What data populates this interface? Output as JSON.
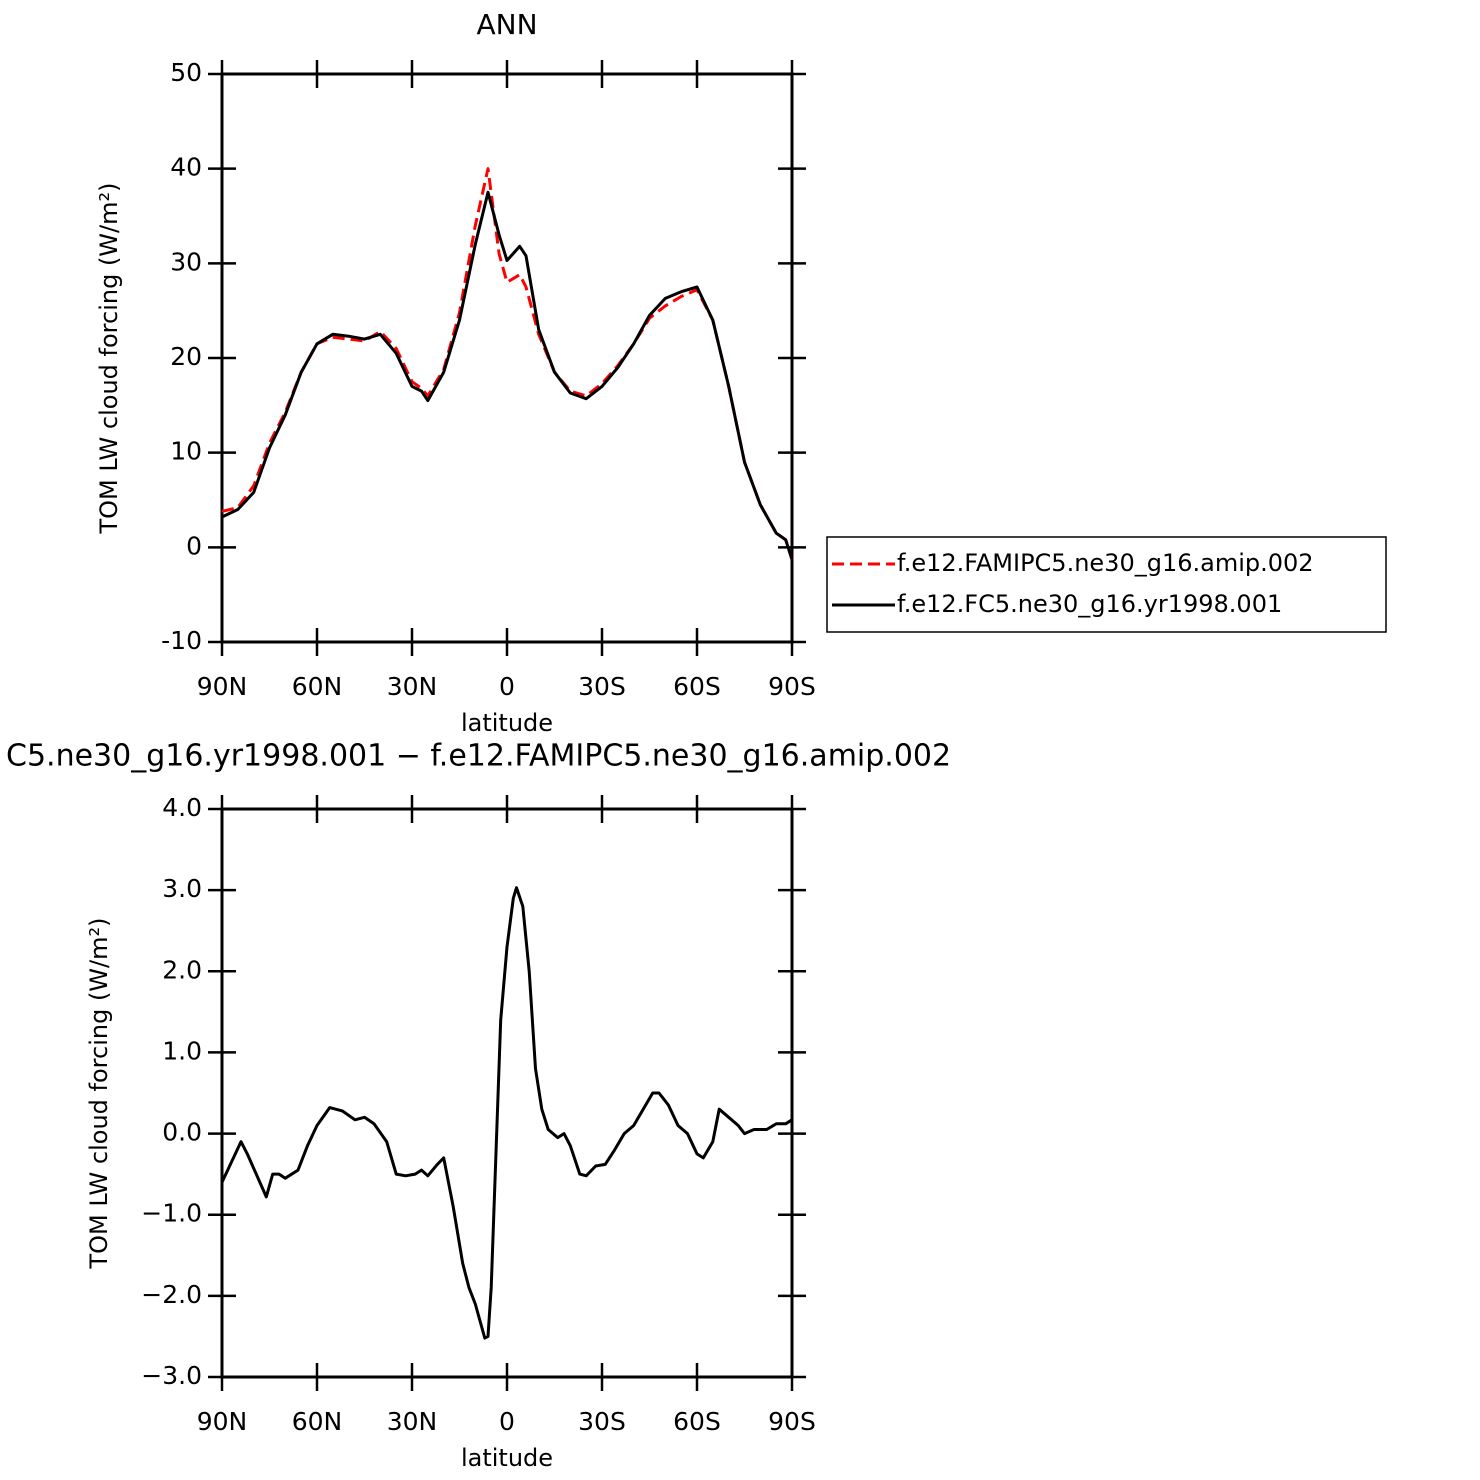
{
  "chart_data": [
    {
      "type": "line",
      "title": "ANN",
      "xlabel": "latitude",
      "ylabel": "TOM LW cloud forcing (W/m²)",
      "x": [
        90,
        85,
        80,
        75,
        70,
        65,
        60,
        55,
        50,
        45,
        40,
        35,
        30,
        27,
        25,
        20,
        15,
        10,
        6,
        2.5,
        0,
        -4,
        -6,
        -10,
        -15,
        -20,
        -25,
        -30,
        -35,
        -40,
        -45,
        -50,
        -55,
        -60,
        -65,
        -70,
        -75,
        -80,
        -85,
        -88,
        -90
      ],
      "series": [
        {
          "name": "f.e12.FAMIPC5.ne30_g16.amip.002",
          "color": "#ff0000",
          "dash": true,
          "values": [
            3.8,
            4.2,
            6.5,
            11,
            14.3,
            18.5,
            21.5,
            22.2,
            22.0,
            21.8,
            22.8,
            21,
            17.5,
            16.8,
            16,
            18.8,
            24.8,
            34,
            40,
            31,
            28,
            28.8,
            27.5,
            22.5,
            18.5,
            16.5,
            16,
            17.3,
            19.2,
            21.5,
            24.2,
            25.5,
            26.5,
            27.2,
            24,
            17,
            9,
            4.5,
            1.5,
            0.8,
            -1.3
          ]
        },
        {
          "name": "f.e12.FC5.ne30_g16.yr1998.001",
          "color": "#000000",
          "dash": false,
          "values": [
            3.2,
            4.0,
            5.8,
            10.5,
            14,
            18.5,
            21.5,
            22.5,
            22.3,
            22.0,
            22.5,
            20.5,
            17,
            16.5,
            15.5,
            18.5,
            24,
            32,
            37.5,
            33,
            30.3,
            31.8,
            30.8,
            23,
            18.5,
            16.3,
            15.7,
            17,
            19,
            21.5,
            24.5,
            26.3,
            27,
            27.5,
            24,
            17,
            9,
            4.5,
            1.5,
            0.8,
            -1.3
          ]
        }
      ],
      "xlim": [
        90,
        -90
      ],
      "xticks": [
        {
          "value": 90,
          "label": "90N"
        },
        {
          "value": 60,
          "label": "60N"
        },
        {
          "value": 30,
          "label": "30N"
        },
        0,
        {
          "value": -30,
          "label": "30S"
        },
        {
          "value": -60,
          "label": "60S"
        },
        {
          "value": -90,
          "label": "90S"
        }
      ],
      "ylim": [
        -10,
        50
      ],
      "yticks": [
        -10,
        0,
        10,
        20,
        30,
        40,
        50
      ],
      "legend": "outside-right"
    },
    {
      "type": "line",
      "title": "C5.ne30_g16.yr1998.001 − f.e12.FAMIPC5.ne30_g16.amip.002",
      "xlabel": "latitude",
      "ylabel": "TOM LW cloud forcing (W/m²)",
      "x": [
        90,
        87,
        84,
        82,
        76,
        74,
        72,
        70,
        66,
        63,
        60,
        56,
        52,
        48,
        45,
        42,
        38,
        35,
        32,
        29,
        27,
        25,
        22,
        20,
        17,
        14,
        12,
        10,
        7,
        6,
        5,
        2,
        0,
        -2,
        -3,
        -5,
        -7,
        -9,
        -11,
        -13,
        -16,
        -18,
        -20,
        -23,
        -25,
        -28,
        -31,
        -34,
        -37,
        -40,
        -43,
        -46,
        -48,
        -51,
        -54,
        -57,
        -60,
        -62,
        -65,
        -67,
        -70,
        -73,
        -75,
        -78,
        -82,
        -85,
        -88,
        -90
      ],
      "series": [
        {
          "name": null,
          "color": "#000000",
          "dash": false,
          "values": [
            -0.6,
            -0.35,
            -0.1,
            -0.25,
            -0.78,
            -0.5,
            -0.5,
            -0.55,
            -0.45,
            -0.15,
            0.1,
            0.32,
            0.28,
            0.17,
            0.2,
            0.12,
            -0.1,
            -0.5,
            -0.52,
            -0.5,
            -0.45,
            -0.52,
            -0.38,
            -0.3,
            -0.9,
            -1.6,
            -1.9,
            -2.1,
            -2.52,
            -2.5,
            -1.9,
            1.4,
            2.3,
            2.9,
            3.03,
            2.8,
            2.0,
            0.8,
            0.3,
            0.05,
            -0.05,
            0.0,
            -0.15,
            -0.5,
            -0.52,
            -0.4,
            -0.38,
            -0.2,
            0.0,
            0.1,
            0.3,
            0.5,
            0.5,
            0.35,
            0.1,
            0.0,
            -0.25,
            -0.3,
            -0.1,
            0.3,
            0.2,
            0.1,
            0.0,
            0.05,
            0.05,
            0.12,
            0.12,
            0.17
          ]
        }
      ],
      "xlim": [
        90,
        -90
      ],
      "xticks": [
        {
          "value": 90,
          "label": "90N"
        },
        {
          "value": 60,
          "label": "60N"
        },
        {
          "value": 30,
          "label": "30N"
        },
        0,
        {
          "value": -30,
          "label": "30S"
        },
        {
          "value": -60,
          "label": "60S"
        },
        {
          "value": -90,
          "label": "90S"
        }
      ],
      "ylim": [
        -3,
        4
      ],
      "yticks": [
        {
          "value": -3,
          "label": "−3.0"
        },
        {
          "value": -2,
          "label": "−2.0"
        },
        {
          "value": -1,
          "label": "−1.0"
        },
        {
          "value": 0,
          "label": "0.0"
        },
        {
          "value": 1,
          "label": "1.0"
        },
        {
          "value": 2,
          "label": "2.0"
        },
        {
          "value": 3,
          "label": "3.0"
        },
        {
          "value": 4,
          "label": "4.0"
        }
      ]
    }
  ]
}
